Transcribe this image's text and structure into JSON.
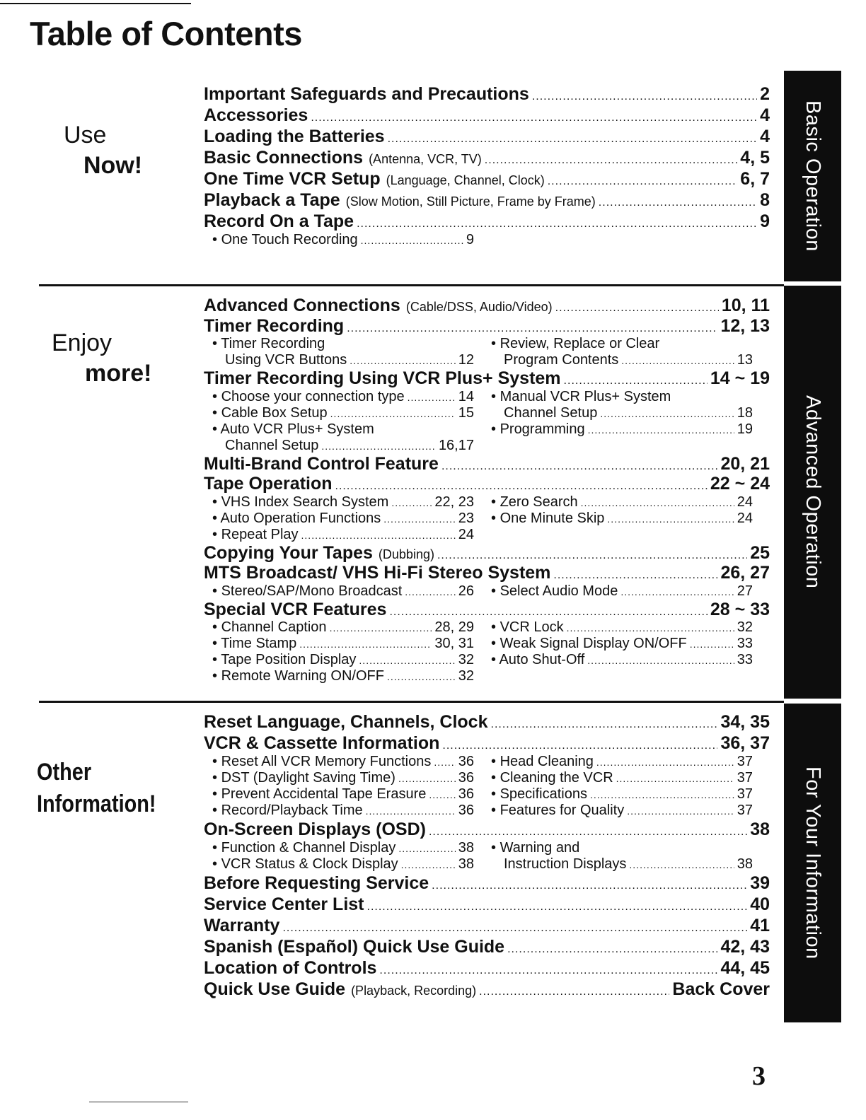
{
  "title": "Table of Contents",
  "page_number": "3",
  "sections": [
    {
      "label1": "Use",
      "label2": "Now!",
      "tab": "Basic Operation",
      "items": [
        {
          "type": "h",
          "text": "Important Safeguards and Precautions",
          "note": "",
          "page": "2"
        },
        {
          "type": "h",
          "text": "Accessories",
          "note": "",
          "page": "4"
        },
        {
          "type": "h",
          "text": "Loading the Batteries",
          "note": "",
          "page": "4"
        },
        {
          "type": "h",
          "text": "Basic Connections",
          "note": "(Antenna, VCR, TV)",
          "page": "4, 5"
        },
        {
          "type": "h",
          "text": "One Time VCR Setup",
          "note": "(Language, Channel, Clock)",
          "page": "6, 7"
        },
        {
          "type": "h",
          "text": "Playback a Tape",
          "note": "(Slow Motion, Still Picture, Frame by Frame)",
          "page": "8"
        },
        {
          "type": "h",
          "text": "Record On a Tape",
          "note": "",
          "page": "9"
        },
        {
          "type": "s",
          "l": {
            "b": "• ",
            "text": "One Touch Recording",
            "page": "9"
          },
          "r": null
        }
      ]
    },
    {
      "label1": "Enjoy",
      "label2": "more!",
      "tab": "Advanced Operation",
      "items": [
        {
          "type": "h",
          "text": "Advanced Connections",
          "note": "(Cable/DSS, Audio/Video)",
          "page": "10, 11"
        },
        {
          "type": "h",
          "text": "Timer Recording",
          "note": "",
          "page": "12, 13"
        },
        {
          "type": "s",
          "l": {
            "b": "• ",
            "text": "Timer Recording",
            "page": ""
          },
          "r": {
            "b": "• ",
            "text": "Review, Replace or Clear",
            "page": ""
          }
        },
        {
          "type": "s",
          "l": {
            "b": "",
            "text": "Using VCR Buttons",
            "page": "12"
          },
          "r": {
            "b": "",
            "text": "Program Contents",
            "page": "13"
          }
        },
        {
          "type": "h",
          "text": "Timer Recording Using VCR Plus+ System",
          "note": "",
          "page": "14 ~ 19"
        },
        {
          "type": "s",
          "l": {
            "b": "• ",
            "text": "Choose your connection type",
            "page": "14"
          },
          "r": {
            "b": "• ",
            "text": "Manual VCR Plus+ System",
            "page": ""
          }
        },
        {
          "type": "s",
          "l": {
            "b": "• ",
            "text": "Cable Box Setup",
            "page": "15"
          },
          "r": {
            "b": "",
            "text": "Channel Setup",
            "page": "18"
          }
        },
        {
          "type": "s",
          "l": {
            "b": "• ",
            "text": "Auto VCR Plus+ System",
            "page": ""
          },
          "r": {
            "b": "• ",
            "text": "Programming",
            "page": "19"
          }
        },
        {
          "type": "s",
          "l": {
            "b": "",
            "text": "Channel Setup",
            "page": "16,17"
          },
          "r": null
        },
        {
          "type": "h",
          "text": "Multi-Brand Control Feature",
          "note": "",
          "page": "20, 21"
        },
        {
          "type": "h",
          "text": "Tape Operation",
          "note": "",
          "page": "22 ~ 24"
        },
        {
          "type": "s",
          "l": {
            "b": "• ",
            "text": "VHS Index Search System",
            "page": "22, 23"
          },
          "r": {
            "b": "• ",
            "text": "Zero Search",
            "page": "24"
          }
        },
        {
          "type": "s",
          "l": {
            "b": "• ",
            "text": "Auto Operation Functions",
            "page": "23"
          },
          "r": {
            "b": "• ",
            "text": "One Minute Skip",
            "page": "24"
          }
        },
        {
          "type": "s",
          "l": {
            "b": "• ",
            "text": "Repeat Play",
            "page": "24"
          },
          "r": null
        },
        {
          "type": "h",
          "text": "Copying Your Tapes",
          "note": "(Dubbing)",
          "page": "25"
        },
        {
          "type": "h",
          "text": "MTS Broadcast/ VHS Hi-Fi Stereo System",
          "note": "",
          "page": "26, 27"
        },
        {
          "type": "s",
          "l": {
            "b": "• ",
            "text": "Stereo/SAP/Mono Broadcast",
            "page": "26"
          },
          "r": {
            "b": "• ",
            "text": "Select Audio Mode",
            "page": "27"
          }
        },
        {
          "type": "h",
          "text": "Special VCR Features",
          "note": "",
          "page": "28 ~ 33"
        },
        {
          "type": "s",
          "l": {
            "b": "• ",
            "text": "Channel Caption",
            "page": "28, 29"
          },
          "r": {
            "b": "• ",
            "text": "VCR Lock",
            "page": "32"
          }
        },
        {
          "type": "s",
          "l": {
            "b": "• ",
            "text": "Time Stamp",
            "page": "30, 31"
          },
          "r": {
            "b": "• ",
            "text": "Weak Signal Display ON/OFF",
            "page": "33"
          }
        },
        {
          "type": "s",
          "l": {
            "b": "• ",
            "text": "Tape Position Display",
            "page": "32"
          },
          "r": {
            "b": "• ",
            "text": "Auto Shut-Off",
            "page": "33"
          }
        },
        {
          "type": "s",
          "l": {
            "b": "• ",
            "text": "Remote Warning ON/OFF",
            "page": "32"
          },
          "r": null
        }
      ]
    },
    {
      "label1": "Other",
      "label2": "Information!",
      "tab": "For Your Information",
      "items": [
        {
          "type": "h",
          "text": "Reset Language, Channels, Clock",
          "note": "",
          "page": "34, 35"
        },
        {
          "type": "h",
          "text": "VCR & Cassette Information",
          "note": "",
          "page": "36, 37"
        },
        {
          "type": "s",
          "l": {
            "b": "• ",
            "text": "Reset All VCR Memory Functions",
            "page": "36"
          },
          "r": {
            "b": "• ",
            "text": "Head Cleaning",
            "page": "37"
          }
        },
        {
          "type": "s",
          "l": {
            "b": "• ",
            "text": "DST (Daylight Saving Time)",
            "page": "36"
          },
          "r": {
            "b": "• ",
            "text": "Cleaning the VCR",
            "page": "37"
          }
        },
        {
          "type": "s",
          "l": {
            "b": "• ",
            "text": "Prevent Accidental Tape Erasure",
            "page": "36"
          },
          "r": {
            "b": "• ",
            "text": "Specifications",
            "page": "37"
          }
        },
        {
          "type": "s",
          "l": {
            "b": "• ",
            "text": "Record/Playback Time",
            "page": "36"
          },
          "r": {
            "b": "• ",
            "text": "Features for Quality",
            "page": "37"
          }
        },
        {
          "type": "h",
          "text": "On-Screen Displays (OSD)",
          "note": "",
          "page": "38"
        },
        {
          "type": "s",
          "l": {
            "b": "• ",
            "text": "Function & Channel Display",
            "page": "38"
          },
          "r": {
            "b": "• ",
            "text": "Warning and",
            "page": ""
          }
        },
        {
          "type": "s",
          "l": {
            "b": "• ",
            "text": "VCR Status & Clock Display",
            "page": "38"
          },
          "r": {
            "b": "",
            "text": "Instruction Displays",
            "page": "38"
          }
        },
        {
          "type": "h",
          "text": "Before Requesting Service",
          "note": "",
          "page": "39"
        },
        {
          "type": "h",
          "text": "Service Center List",
          "note": "",
          "page": "40"
        },
        {
          "type": "h",
          "text": "Warranty",
          "note": "",
          "page": "41"
        },
        {
          "type": "h",
          "text": "Spanish (Español) Quick Use Guide",
          "note": "",
          "page": "42, 43"
        },
        {
          "type": "h",
          "text": "Location of Controls",
          "note": "",
          "page": "44, 45"
        },
        {
          "type": "h",
          "text": "Quick Use Guide",
          "note": "(Playback, Recording)",
          "page": "Back Cover"
        }
      ]
    }
  ]
}
